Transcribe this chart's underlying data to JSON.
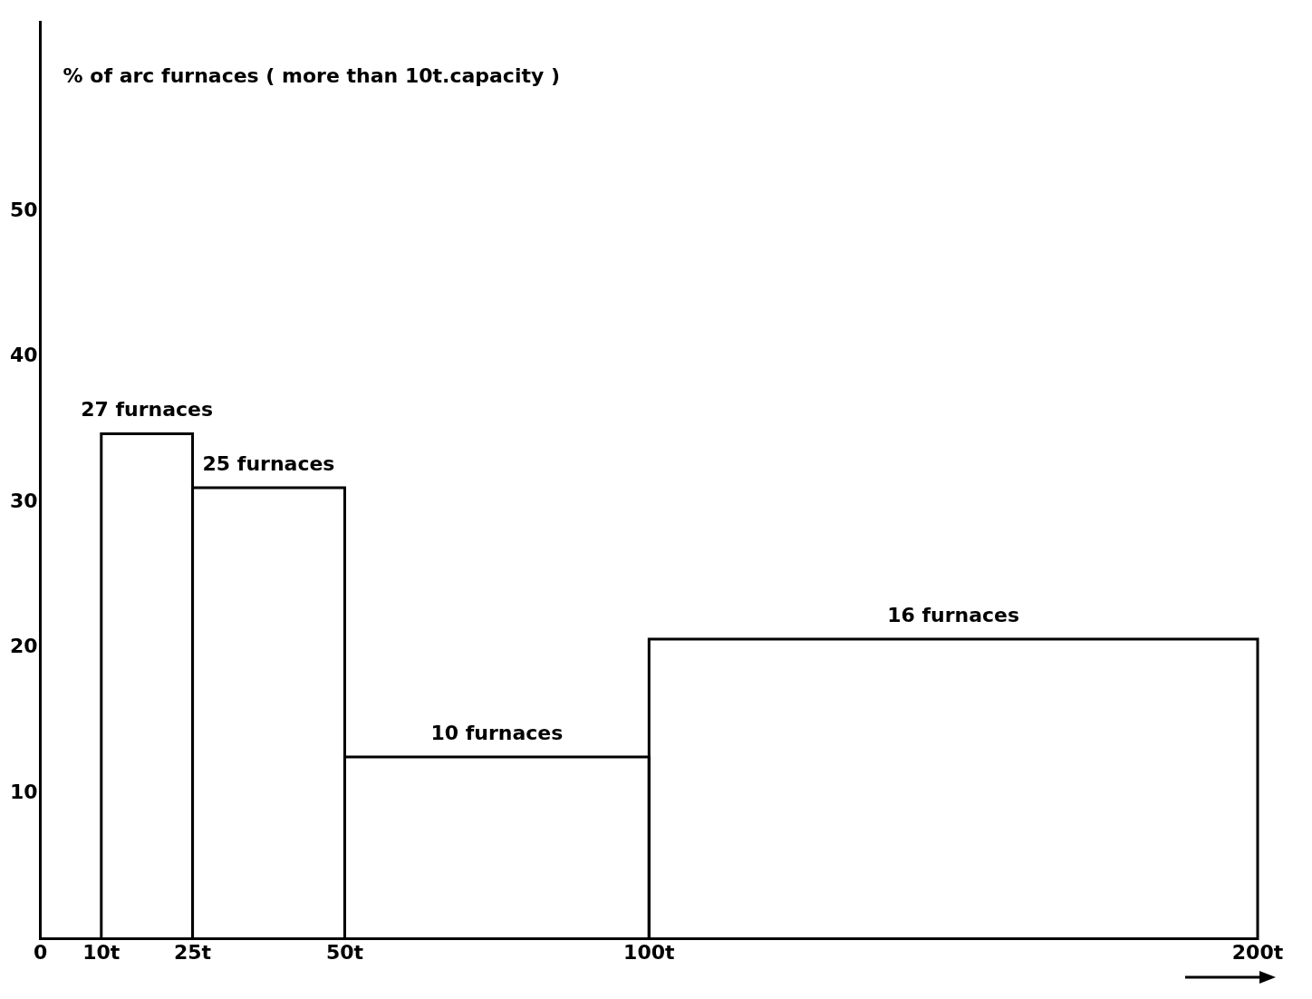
{
  "chart_data": {
    "type": "histogram",
    "ylabel": "% of arc furnaces ( more than 10t.capacity )",
    "bins": [
      10,
      25,
      50,
      100,
      200
    ],
    "values": [
      34.7,
      31.0,
      12.5,
      20.6
    ],
    "color": "#000000",
    "xlim": [
      0,
      200
    ],
    "xticks": [
      {
        "value": 0,
        "label": "0"
      },
      {
        "value": 10,
        "label": "10t"
      },
      {
        "value": 25,
        "label": "25t"
      },
      {
        "value": 50,
        "label": "50t"
      },
      {
        "value": 100,
        "label": "100t"
      },
      {
        "value": 200,
        "label": "200t"
      }
    ],
    "ylim": [
      0,
      63
    ],
    "yticks": [
      10,
      20,
      30,
      40,
      50
    ],
    "grid": false,
    "legend": false,
    "annotations": [
      {
        "text": "27 furnaces",
        "x": 17.5,
        "y": 34.7
      },
      {
        "text": "25 furnaces",
        "x": 37.5,
        "y": 31.0
      },
      {
        "text": "10 furnaces",
        "x": 75,
        "y": 12.5
      },
      {
        "text": "16 furnaces",
        "x": 150,
        "y": 20.6
      }
    ]
  }
}
